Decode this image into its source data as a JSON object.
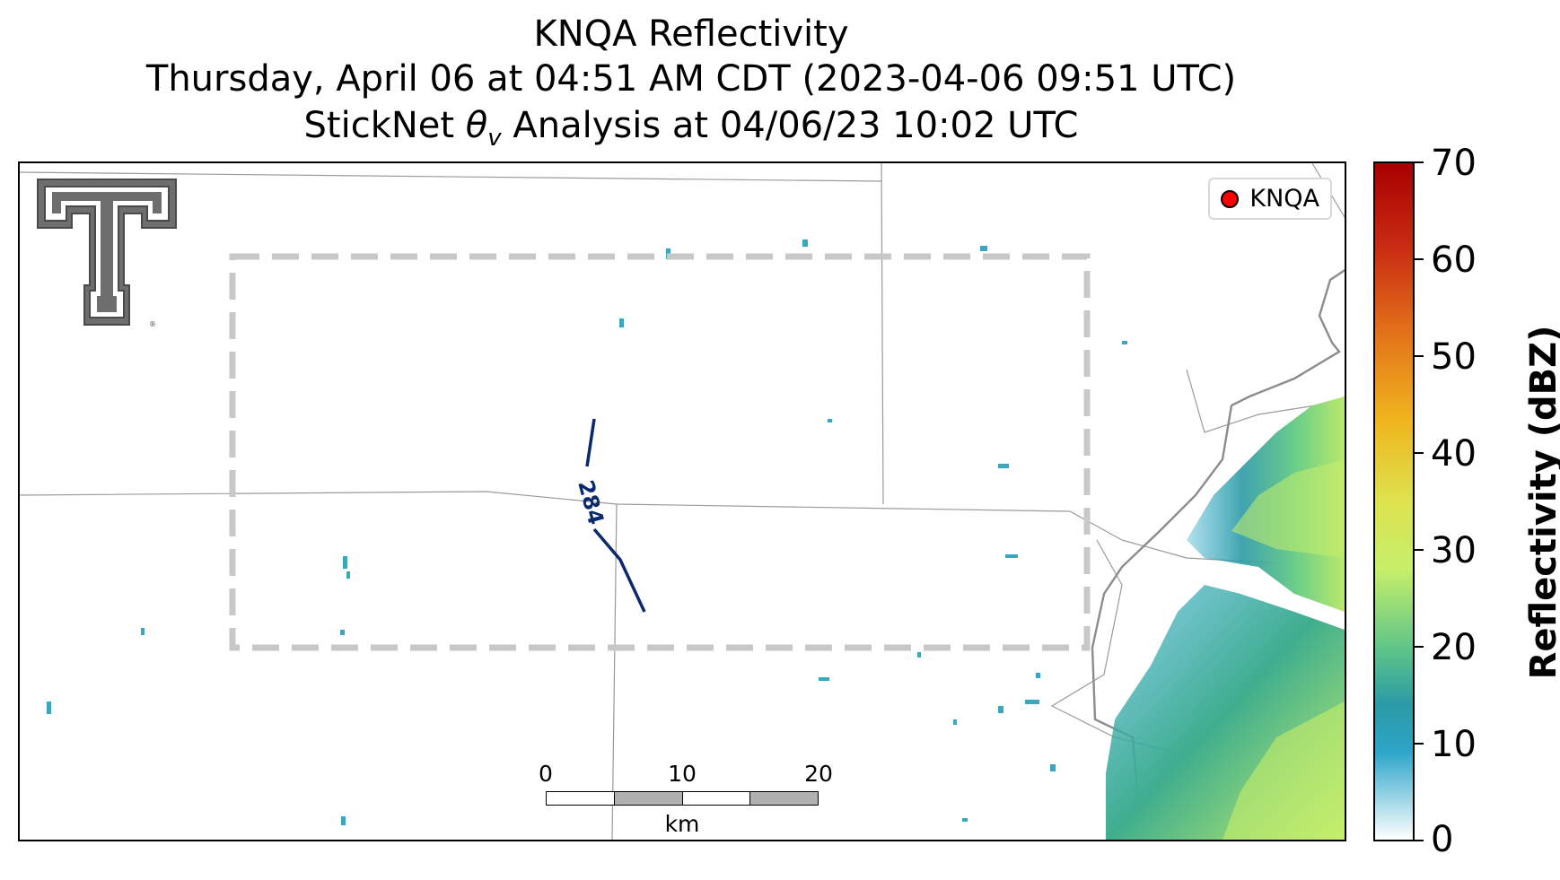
{
  "header": {
    "title": "KNQA Reflectivity",
    "subtitle": "Thursday, April 06 at 04:51 AM CDT (2023-04-06 09:51 UTC)",
    "analysis_prefix": "StickNet ",
    "analysis_theta": "θ",
    "analysis_subscript": "v",
    "analysis_suffix": " Analysis at 04/06/23 10:02 UTC"
  },
  "map": {
    "legend": {
      "label": "KNQA",
      "marker_color": "#ff0000"
    },
    "contour": {
      "label": "284",
      "color": "#0b2a6e"
    },
    "domain_box_color": "#c8c8c8",
    "logo_icon": "texas-tech-double-t-icon",
    "scalebar": {
      "ticks": [
        "0",
        "10",
        "20"
      ],
      "unit": "km"
    }
  },
  "colorbar": {
    "label": "Reflectivity (dBZ)",
    "ticks": [
      "70",
      "60",
      "50",
      "40",
      "30",
      "20",
      "10",
      "0"
    ],
    "min": 0,
    "max": 70,
    "colors": [
      "#ffffff",
      "#2ca5c9",
      "#2b9aa6",
      "#5cc48a",
      "#c6ef6a",
      "#dde34f",
      "#f0b51e",
      "#e2721a",
      "#c82a12",
      "#a80000"
    ]
  }
}
